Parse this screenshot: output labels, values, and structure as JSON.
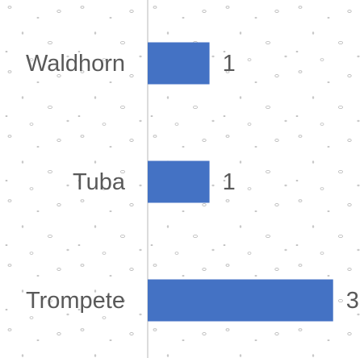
{
  "chart_data": {
    "type": "bar",
    "orientation": "horizontal",
    "categories": [
      "Waldhorn",
      "Tuba",
      "Trompete"
    ],
    "values": [
      1,
      1,
      3
    ],
    "color": "#4472c4",
    "xlim": [
      0,
      3.5
    ]
  }
}
